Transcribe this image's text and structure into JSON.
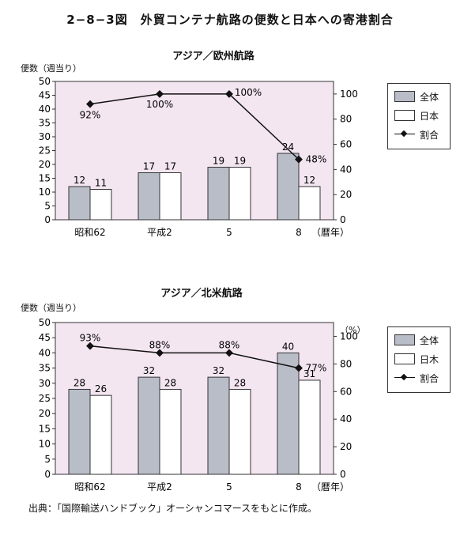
{
  "page_title": "2−8−3図　外貿コンテナ航路の便数と日本への寄港割合",
  "source": "出典：「国際輸送ハンドブック」オーシャンコマースをもとに作成。",
  "colors": {
    "plot_bg": "#f3e6f1",
    "bar_total": "#b9bdc8",
    "bar_japan": "#ffffff",
    "line": "#111111"
  },
  "legend": {
    "total": "全体",
    "japan": "日本",
    "japan_chart2": "日木",
    "ratio": "割合"
  },
  "chart_data": [
    {
      "type": "bar",
      "title": "アジア／欧州航路",
      "ylabel": "便数（週当り）",
      "y2label": "",
      "xunit": "（暦年）",
      "categories": [
        "昭和62",
        "平成2",
        "5",
        "8"
      ],
      "ylim": [
        0,
        50
      ],
      "y2lim": [
        0,
        110
      ],
      "series": [
        {
          "name": "全体",
          "values": [
            12,
            17,
            19,
            24
          ]
        },
        {
          "name": "日本",
          "values": [
            11,
            17,
            19,
            12
          ]
        },
        {
          "name": "割合",
          "axis": "right",
          "values": [
            92,
            100,
            100,
            48
          ],
          "labels": [
            "92%",
            "100%",
            "100%",
            "48%"
          ]
        }
      ],
      "legend_position": "right",
      "grid": false
    },
    {
      "type": "bar",
      "title": "アジア／北米航路",
      "ylabel": "便数（週当り）",
      "y2label": "（%）",
      "xunit": "（暦年）",
      "categories": [
        "昭和62",
        "平成2",
        "5",
        "8"
      ],
      "ylim": [
        0,
        50
      ],
      "y2lim": [
        0,
        110
      ],
      "series": [
        {
          "name": "全体",
          "values": [
            28,
            32,
            32,
            40
          ]
        },
        {
          "name": "日本",
          "values": [
            26,
            28,
            28,
            31
          ]
        },
        {
          "name": "割合",
          "axis": "right",
          "values": [
            93,
            88,
            88,
            77
          ],
          "labels": [
            "93%",
            "88%",
            "88%",
            "77%"
          ]
        }
      ],
      "legend_position": "right",
      "grid": false
    }
  ]
}
